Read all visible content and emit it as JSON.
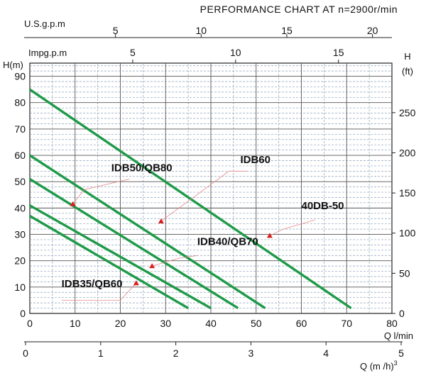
{
  "chart_data": {
    "type": "line",
    "title": "PERFORMANCE CHART AT n=2900r/min",
    "xlabel": "Q l/min",
    "ylabel": "H(m)",
    "xlim": [
      0,
      80
    ],
    "ylim": [
      0,
      95
    ],
    "grid": true,
    "x_ticks": [
      0,
      10,
      20,
      30,
      40,
      50,
      60,
      70,
      80
    ],
    "y_ticks": [
      0,
      10,
      20,
      30,
      40,
      50,
      60,
      70,
      80,
      90
    ],
    "secondary_axes": {
      "us_gpm": {
        "label": "U.S.g.p.m",
        "ticks": [
          5,
          10,
          15,
          20
        ],
        "factor_lpm": 3.7854
      },
      "imp_gpm": {
        "label": "Impg.p.m",
        "ticks": [
          5,
          10,
          15
        ],
        "factor_lpm": 4.5461
      },
      "ft": {
        "label_top": "H",
        "label_bottom": "(ft)",
        "ticks": [
          0,
          50,
          100,
          150,
          200,
          250
        ],
        "factor_m": 0.3048
      },
      "m3h": {
        "label": "Q (m /h)",
        "superscript": "3",
        "ticks": [
          0,
          1,
          2,
          3,
          4,
          5
        ],
        "factor_lpm": 16.6667
      }
    },
    "series": [
      {
        "name": "IDB35/QB60",
        "x": [
          0,
          35
        ],
        "y": [
          37,
          2
        ],
        "label_at": [
          7,
          10
        ]
      },
      {
        "name": "IDB40/QB70",
        "x": [
          0,
          40
        ],
        "y": [
          41,
          2
        ],
        "label_at": [
          37,
          26
        ]
      },
      {
        "name": "IDB50/QB80",
        "x": [
          0,
          46
        ],
        "y": [
          51,
          2
        ],
        "label_at": [
          18,
          54
        ]
      },
      {
        "name": "IDB60",
        "x": [
          0,
          52
        ],
        "y": [
          60,
          2
        ],
        "label_at": [
          46.5,
          57
        ]
      },
      {
        "name": "40DB-50",
        "x": [
          0,
          71
        ],
        "y": [
          85,
          2
        ],
        "label_at": [
          60,
          39.5
        ]
      }
    ],
    "line_color": "#1e9a48"
  }
}
